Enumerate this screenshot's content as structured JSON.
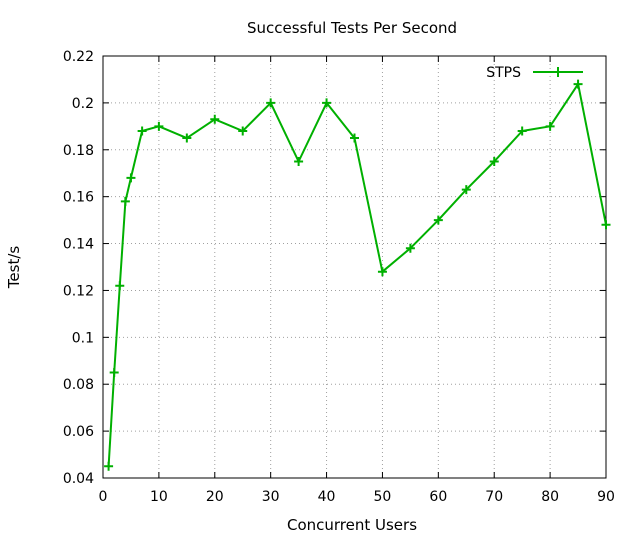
{
  "chart_data": {
    "type": "line",
    "title": "Successful Tests Per Second",
    "xlabel": "Concurrent Users",
    "ylabel": "Test/s",
    "xlim": [
      0,
      90
    ],
    "ylim": [
      0.04,
      0.22
    ],
    "xticks": [
      "0",
      "10",
      "20",
      "30",
      "40",
      "50",
      "60",
      "70",
      "80",
      "90"
    ],
    "yticks": [
      "0.04",
      "0.06",
      "0.08",
      "0.1",
      "0.12",
      "0.14",
      "0.16",
      "0.18",
      "0.2",
      "0.22"
    ],
    "grid": true,
    "legend_position": "top-right",
    "series": [
      {
        "name": "STPS",
        "color": "#00b000",
        "marker": "plus",
        "x": [
          1,
          2,
          3,
          4,
          5,
          7,
          10,
          15,
          20,
          25,
          30,
          35,
          40,
          45,
          50,
          55,
          60,
          65,
          70,
          75,
          80,
          85,
          90
        ],
        "y": [
          0.045,
          0.085,
          0.122,
          0.158,
          0.168,
          0.188,
          0.19,
          0.185,
          0.193,
          0.188,
          0.2,
          0.175,
          0.2,
          0.185,
          0.128,
          0.138,
          0.15,
          0.163,
          0.175,
          0.188,
          0.19,
          0.208,
          0.148
        ]
      }
    ]
  }
}
